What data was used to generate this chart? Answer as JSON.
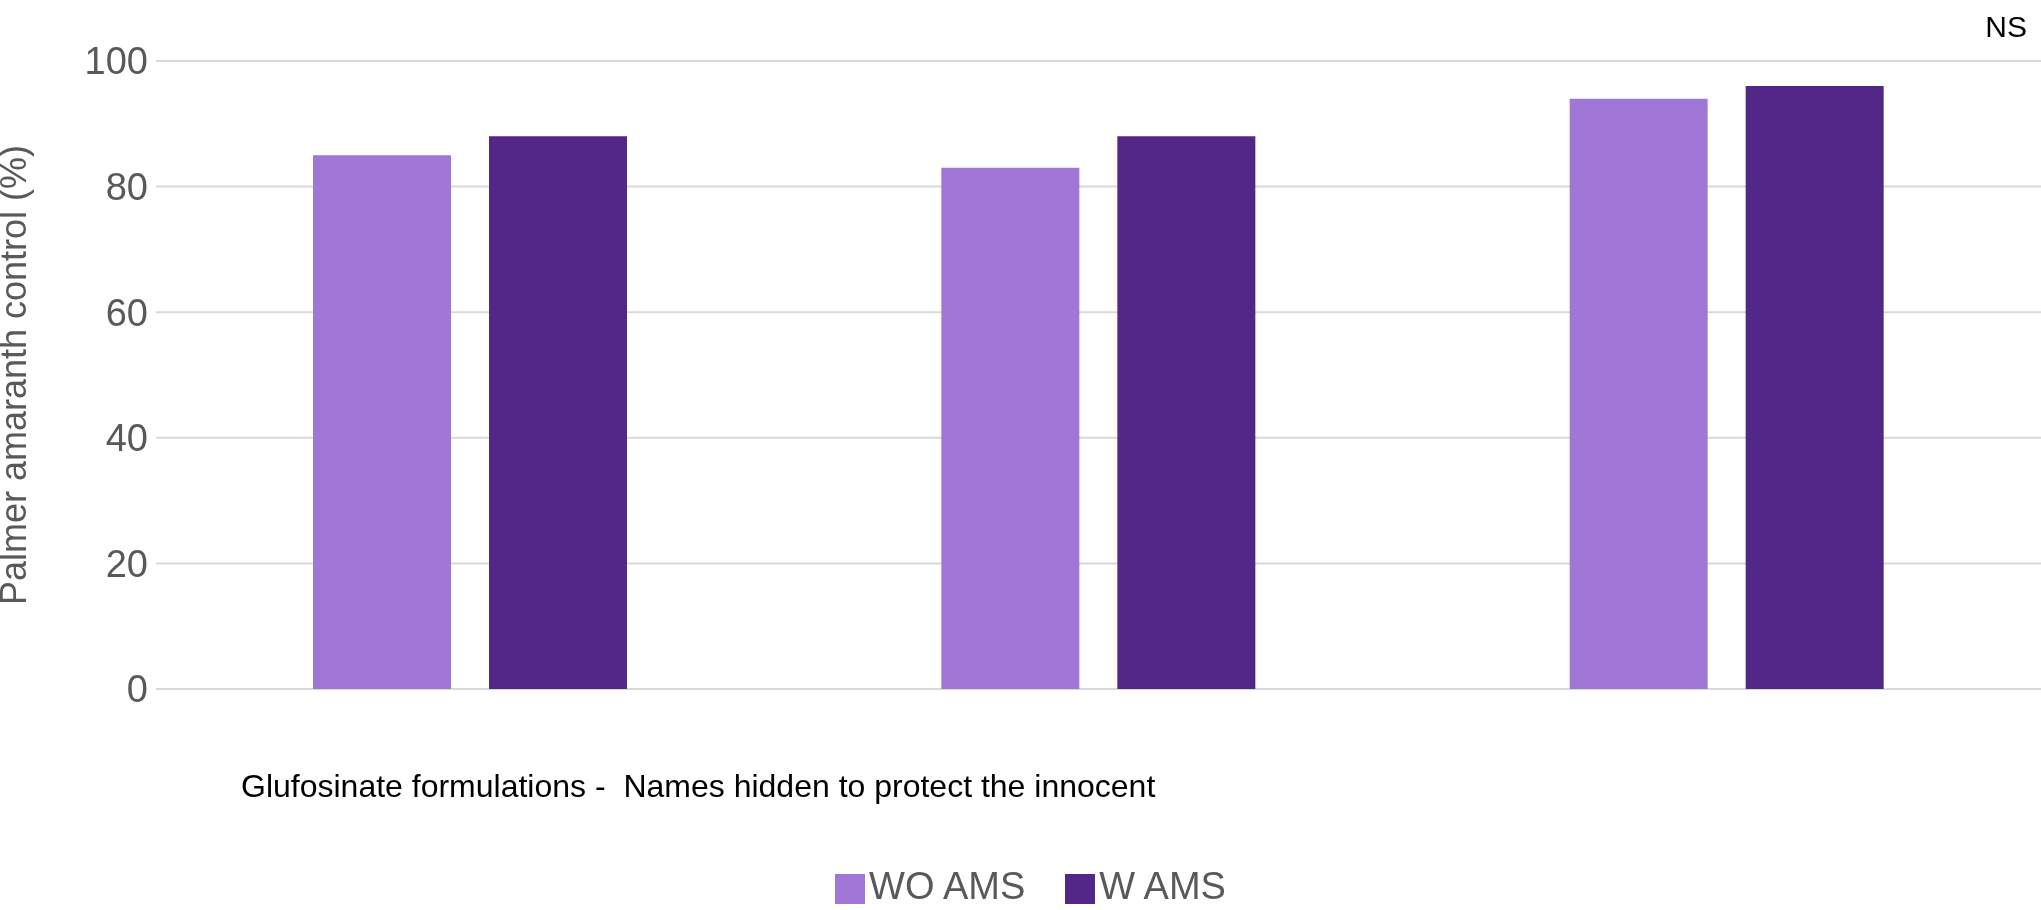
{
  "chart_data": {
    "type": "bar",
    "xlabel": "Glufosinate formulations -  Names hidden to protect the innocent",
    "ylabel": "Palmer amaranth control (%)",
    "categories": [
      null,
      null,
      null
    ],
    "series": [
      {
        "name": "WO AMS",
        "color": "#a077d6",
        "values": [
          85,
          83,
          94
        ]
      },
      {
        "name": "W AMS",
        "color": "#532787",
        "values": [
          88,
          88,
          96
        ]
      }
    ],
    "ylim": [
      0,
      100
    ],
    "yticks": [
      0,
      20,
      40,
      60,
      80,
      100
    ],
    "grid": "y",
    "legend": "bottom",
    "annotations": [
      "NS"
    ]
  }
}
